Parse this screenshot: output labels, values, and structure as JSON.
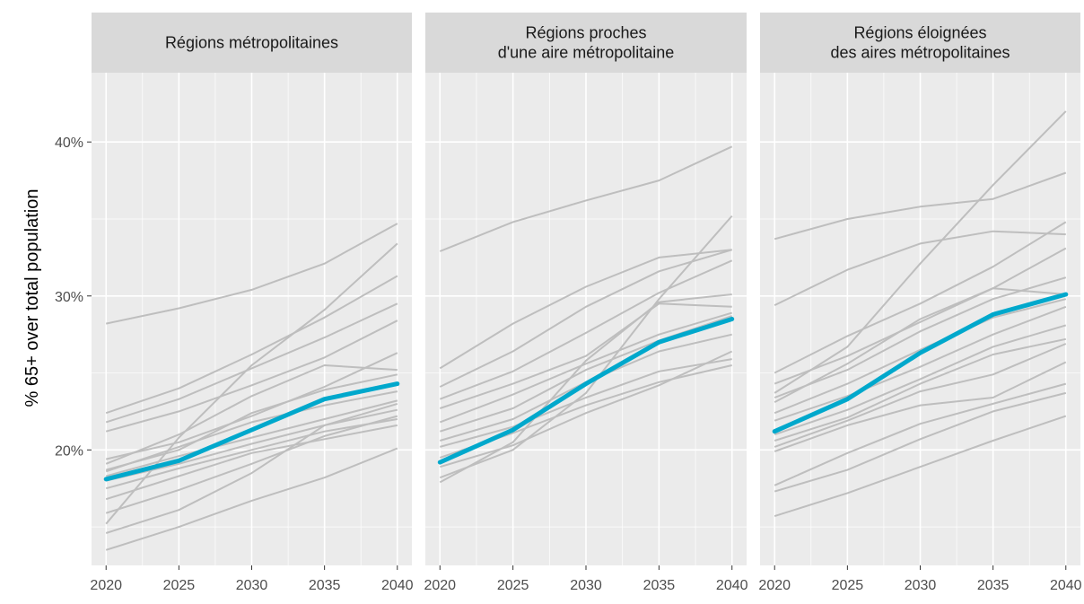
{
  "chart_data": {
    "type": "line",
    "ylabel": "% 65+ over total population",
    "x": [
      2020,
      2025,
      2030,
      2035,
      2040
    ],
    "x_ticks": [
      "2020",
      "2025",
      "2030",
      "2035",
      "2040"
    ],
    "y_ticks": [
      {
        "value": 20,
        "label": "20%"
      },
      {
        "value": 30,
        "label": "30%"
      },
      {
        "value": 40,
        "label": "40%"
      }
    ],
    "ylim": [
      12.5,
      44.5
    ],
    "xlim": [
      2019,
      2041
    ],
    "grid": true,
    "colors": {
      "background_series": "#bebebe",
      "highlight_series": "#00a8cc"
    },
    "facets": [
      {
        "title_lines": [
          "Régions métropolitaines"
        ],
        "highlight": [
          18.1,
          19.3,
          21.3,
          23.3,
          24.3
        ],
        "series": [
          [
            28.2,
            29.2,
            30.4,
            32.1,
            34.7
          ],
          [
            22.4,
            24.0,
            26.2,
            28.6,
            31.3
          ],
          [
            21.8,
            23.3,
            25.3,
            27.3,
            29.5
          ],
          [
            21.2,
            22.5,
            24.2,
            26.0,
            28.4
          ],
          [
            19.4,
            20.5,
            22.2,
            24.1,
            26.3
          ],
          [
            19.1,
            21.0,
            23.5,
            25.5,
            25.2
          ],
          [
            18.7,
            20.0,
            22.4,
            23.9,
            24.9
          ],
          [
            18.6,
            20.2,
            21.8,
            22.9,
            23.8
          ],
          [
            18.3,
            19.6,
            20.8,
            22.0,
            23.2
          ],
          [
            18.0,
            19.1,
            20.4,
            21.6,
            22.6
          ],
          [
            17.5,
            18.8,
            20.0,
            21.2,
            22.0
          ],
          [
            16.8,
            18.3,
            19.8,
            20.7,
            21.6
          ],
          [
            15.9,
            17.4,
            19.1,
            20.9,
            22.2
          ],
          [
            14.6,
            16.1,
            18.5,
            21.6,
            23.0
          ],
          [
            15.2,
            20.8,
            25.5,
            29.1,
            33.4
          ],
          [
            13.5,
            15.0,
            16.7,
            18.2,
            20.1
          ]
        ]
      },
      {
        "title_lines": [
          "Régions proches",
          "d'une aire métropolitaine"
        ],
        "highlight": [
          19.2,
          21.3,
          24.3,
          27.0,
          28.5
        ],
        "series": [
          [
            32.9,
            34.8,
            36.2,
            37.5,
            39.7
          ],
          [
            25.3,
            28.2,
            30.6,
            32.5,
            33.0
          ],
          [
            24.1,
            26.4,
            29.3,
            31.6,
            33.0
          ],
          [
            23.3,
            25.1,
            27.6,
            30.2,
            32.3
          ],
          [
            22.7,
            24.3,
            26.1,
            29.5,
            29.3
          ],
          [
            21.8,
            23.6,
            25.6,
            27.5,
            28.9
          ],
          [
            21.2,
            22.7,
            25.2,
            27.1,
            28.7
          ],
          [
            20.6,
            22.0,
            24.4,
            26.4,
            27.5
          ],
          [
            20.2,
            21.5,
            23.4,
            25.1,
            25.9
          ],
          [
            19.5,
            21.1,
            22.9,
            24.4,
            25.5
          ],
          [
            18.9,
            20.3,
            22.4,
            24.2,
            26.4
          ],
          [
            18.2,
            20.0,
            23.7,
            29.8,
            35.2
          ],
          [
            17.9,
            20.5,
            25.8,
            29.6,
            30.1
          ]
        ]
      },
      {
        "title_lines": [
          "Régions éloignées",
          "des aires métropolitaines"
        ],
        "highlight": [
          21.2,
          23.3,
          26.3,
          28.8,
          30.1
        ],
        "series": [
          [
            33.7,
            35.0,
            35.8,
            36.3,
            38.0
          ],
          [
            29.4,
            31.7,
            33.4,
            34.2,
            34.0
          ],
          [
            25.0,
            27.4,
            29.5,
            31.9,
            34.8
          ],
          [
            24.3,
            26.1,
            28.3,
            30.5,
            33.1
          ],
          [
            23.4,
            25.2,
            27.7,
            29.8,
            31.2
          ],
          [
            23.1,
            25.6,
            28.5,
            30.5,
            30.1
          ],
          [
            22.4,
            24.3,
            26.5,
            28.6,
            29.8
          ],
          [
            21.9,
            23.5,
            25.4,
            27.5,
            29.3
          ],
          [
            21.0,
            22.6,
            24.6,
            26.7,
            28.1
          ],
          [
            20.6,
            22.1,
            24.3,
            26.2,
            27.2
          ],
          [
            20.2,
            21.9,
            23.8,
            24.9,
            26.9
          ],
          [
            19.9,
            21.6,
            22.9,
            23.4,
            25.7
          ],
          [
            17.7,
            19.8,
            21.7,
            23.0,
            24.3
          ],
          [
            17.3,
            18.7,
            20.7,
            22.5,
            23.7
          ],
          [
            15.7,
            17.2,
            18.9,
            20.6,
            22.2
          ],
          [
            23.7,
            26.7,
            32.1,
            37.2,
            42.0
          ]
        ]
      }
    ]
  }
}
